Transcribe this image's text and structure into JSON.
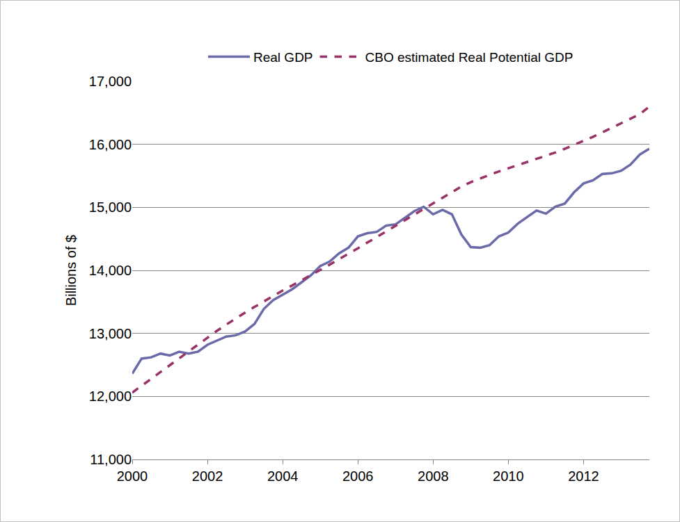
{
  "chart_data": {
    "type": "line",
    "y_label": "Billions of $",
    "x": [
      2000,
      2000.25,
      2000.5,
      2000.75,
      2001,
      2001.25,
      2001.5,
      2001.75,
      2002,
      2002.25,
      2002.5,
      2002.75,
      2003,
      2003.25,
      2003.5,
      2003.75,
      2004,
      2004.25,
      2004.5,
      2004.75,
      2005,
      2005.25,
      2005.5,
      2005.75,
      2006,
      2006.25,
      2006.5,
      2006.75,
      2007,
      2007.25,
      2007.5,
      2007.75,
      2008,
      2008.25,
      2008.5,
      2008.75,
      2009,
      2009.25,
      2009.5,
      2009.75,
      2010,
      2010.25,
      2010.5,
      2010.75,
      2011,
      2011.25,
      2011.5,
      2011.75,
      2012,
      2012.25,
      2012.5,
      2012.75,
      2013,
      2013.25,
      2013.5,
      2013.75
    ],
    "series": [
      {
        "name": "Real GDP",
        "color": "#6b6aa8",
        "line_style": "solid",
        "values": [
          12360,
          12600,
          12620,
          12680,
          12650,
          12710,
          12680,
          12710,
          12820,
          12890,
          12950,
          12970,
          13030,
          13150,
          13390,
          13530,
          13610,
          13700,
          13810,
          13920,
          14070,
          14140,
          14270,
          14360,
          14540,
          14590,
          14610,
          14710,
          14730,
          14840,
          14940,
          15010,
          14890,
          14960,
          14890,
          14570,
          14370,
          14360,
          14400,
          14540,
          14600,
          14740,
          14840,
          14950,
          14900,
          15010,
          15060,
          15240,
          15380,
          15430,
          15530,
          15540,
          15580,
          15680,
          15840,
          15930
        ]
      },
      {
        "name": "CBO estimated Real Potential GDP",
        "color": "#993366",
        "line_style": "dash",
        "values": [
          12060,
          12170,
          12280,
          12390,
          12500,
          12610,
          12720,
          12830,
          12940,
          13040,
          13140,
          13240,
          13330,
          13420,
          13510,
          13600,
          13680,
          13760,
          13840,
          13920,
          14000,
          14090,
          14180,
          14260,
          14350,
          14440,
          14530,
          14620,
          14710,
          14800,
          14890,
          14980,
          15070,
          15160,
          15250,
          15330,
          15400,
          15460,
          15520,
          15570,
          15620,
          15670,
          15720,
          15770,
          15820,
          15870,
          15930,
          15990,
          16050,
          16120,
          16190,
          16260,
          16330,
          16400,
          16480,
          16600
        ]
      }
    ],
    "xlim": [
      2000,
      2013.75
    ],
    "xticks": [
      2000,
      2002,
      2004,
      2006,
      2008,
      2010,
      2012
    ],
    "ylim": [
      11000,
      17000
    ],
    "yticks": [
      {
        "value": 11000,
        "label": "11,000"
      },
      {
        "value": 12000,
        "label": "12,000"
      },
      {
        "value": 13000,
        "label": "13,000"
      },
      {
        "value": 14000,
        "label": "14,000"
      },
      {
        "value": 15000,
        "label": "15,000"
      },
      {
        "value": 16000,
        "label": "16,000"
      },
      {
        "value": 17000,
        "label": "17,000"
      }
    ],
    "grid": true,
    "legend": "top"
  }
}
